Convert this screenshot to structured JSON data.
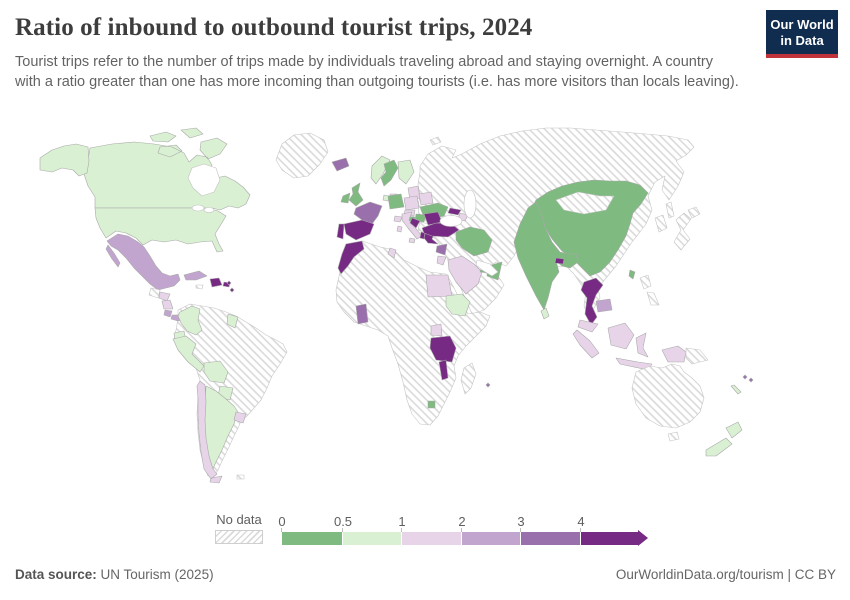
{
  "header": {
    "title": "Ratio of inbound to outbound tourist trips, 2024",
    "subtitle": "Tourist trips refer to the number of trips made by individuals traveling abroad and staying overnight. A country with a ratio greater than one has more incoming than outgoing tourists (i.e. has more visitors than locals leaving).",
    "logo": {
      "line1": "Our World",
      "line2": "in Data"
    }
  },
  "legend": {
    "no_data_label": "No data",
    "ticks": [
      "0",
      "0.5",
      "1",
      "2",
      "3",
      "4"
    ]
  },
  "footer": {
    "source_label": "Data source:",
    "source_value": " UN Tourism (2025)",
    "link": "OurWorldinData.org/tourism",
    "separator": " | ",
    "license": "CC BY"
  },
  "colors": {
    "hatch_stripe": "#dadada",
    "country_border": "#a9a9a9",
    "water": "#ffffff",
    "logo_bg": "#102d50",
    "logo_red": "#c0333b"
  },
  "chart_data": {
    "type": "choropleth",
    "title": "Ratio of inbound to outbound tourist trips",
    "year": 2024,
    "legend_position": "bottom",
    "bins": [
      {
        "id": "0-0.5",
        "range": "0–0.5",
        "color": "#7fba80"
      },
      {
        "id": "0.5-1",
        "range": "0.5–1",
        "color": "#d9f0d3"
      },
      {
        "id": "1-2",
        "range": "1–2",
        "color": "#e7d4e8"
      },
      {
        "id": "2-3",
        "range": "2–3",
        "color": "#c2a5cf"
      },
      {
        "id": "3-4",
        "range": "3–4",
        "color": "#9970ab"
      },
      {
        "id": ">4",
        "range": ">4",
        "color": "#762a83"
      }
    ],
    "no_data": {
      "label": "No data",
      "pattern": "diagonal-hatch"
    },
    "countries": {
      "Canada": "0.5-1",
      "United States": "0.5-1",
      "Mexico": "2-3",
      "Guatemala": "no-data",
      "Honduras": "1-2",
      "Nicaragua": "1-2",
      "Costa Rica": "2-3",
      "Panama": "2-3",
      "Cuba": "2-3",
      "Jamaica": "no-data",
      "Dominican Republic": ">4",
      "Puerto Rico": ">4",
      "Caribbean small islands": ">4",
      "Colombia": "0.5-1",
      "Guyana": "0.5-1",
      "Ecuador": "0.5-1",
      "Peru": "0.5-1",
      "Bolivia": "0.5-1",
      "Paraguay": "0.5-1",
      "Argentina": "0.5-1",
      "Chile": "1-2",
      "Uruguay": "1-2",
      "Falkland Islands": "no-data",
      "Brazil": "no-data",
      "Venezuela": "no-data",
      "Suriname": "no-data",
      "Greenland": "no-data",
      "Iceland": "3-4",
      "United Kingdom": "0-0.5",
      "Ireland": "0-0.5",
      "Norway": "0.5-1",
      "Sweden": "0-0.5",
      "Finland": "0.5-1",
      "Denmark": "1-2",
      "Baltic states": "1-2",
      "Netherlands": "0.5-1",
      "Germany": "0-0.5",
      "Poland": "1-2",
      "Belarus": "1-2",
      "Ukraine": "0-0.5",
      "Czechia": "1-2",
      "Austria": "0-0.5",
      "Switzerland": "1-2",
      "France": "3-4",
      "Spain": ">4",
      "Portugal": ">4",
      "Italy": "1-2",
      "Hungary": "0-0.5",
      "Croatia": ">4",
      "Serbia": "no-data",
      "Albania": ">4",
      "Greece": ">4",
      "Romania": ">4",
      "Bulgaria": ">4",
      "Morocco": ">4",
      "Tunisia": "1-2",
      "Algeria": "no-data",
      "Libya": "no-data",
      "Egypt": "1-2",
      "Sudan": "no-data",
      "Nigeria": "no-data",
      "Ghana": "3-4",
      "Ethiopia": "0.5-1",
      "Somalia": "no-data",
      "Kenya": "no-data",
      "Uganda": "1-2",
      "Tanzania": ">4",
      "Malawi": ">4",
      "Eswatini": "0-0.5",
      "South Africa": "no-data",
      "Madagascar": "no-data",
      "Mauritius": "3-4",
      "Turkey": ">4",
      "Georgia": ">4",
      "Armenia": ">4",
      "Azerbaijan": "1-2",
      "Syria": "3-4",
      "Jordan": "1-2",
      "Iraq": "no-data",
      "Yemen": "no-data",
      "Saudi Arabia": "1-2",
      "Oman": "0-0.5",
      "United Arab Emirates": "0-0.5",
      "Iran": "0-0.5",
      "Afghanistan": "no-data",
      "Pakistan": "no-data",
      "Russia": "no-data",
      "Kazakhstan": "no-data",
      "Uzbekistan": "no-data",
      "Turkmenistan": "no-data",
      "Kyrgyzstan": "no-data",
      "Tajikistan": "no-data",
      "Mongolia": "no-data",
      "China": "0-0.5",
      "Taiwan": "0-0.5",
      "India": "0-0.5",
      "Nepal": "0-0.5",
      "Bhutan": ">4",
      "Sri Lanka": "0.5-1",
      "Myanmar": "no-data",
      "Laos": "no-data",
      "Vietnam": "no-data",
      "Thailand": ">4",
      "Cambodia": "2-3",
      "Malaysia": "1-2",
      "Indonesia": "1-2",
      "Philippines": "no-data",
      "Papua New Guinea": "no-data",
      "Japan": "no-data",
      "South Korea": "no-data",
      "North Korea": "no-data",
      "Australia": "no-data",
      "New Zealand": "0.5-1",
      "New Caledonia": "0.5-1",
      "Fiji": "3-4"
    }
  }
}
